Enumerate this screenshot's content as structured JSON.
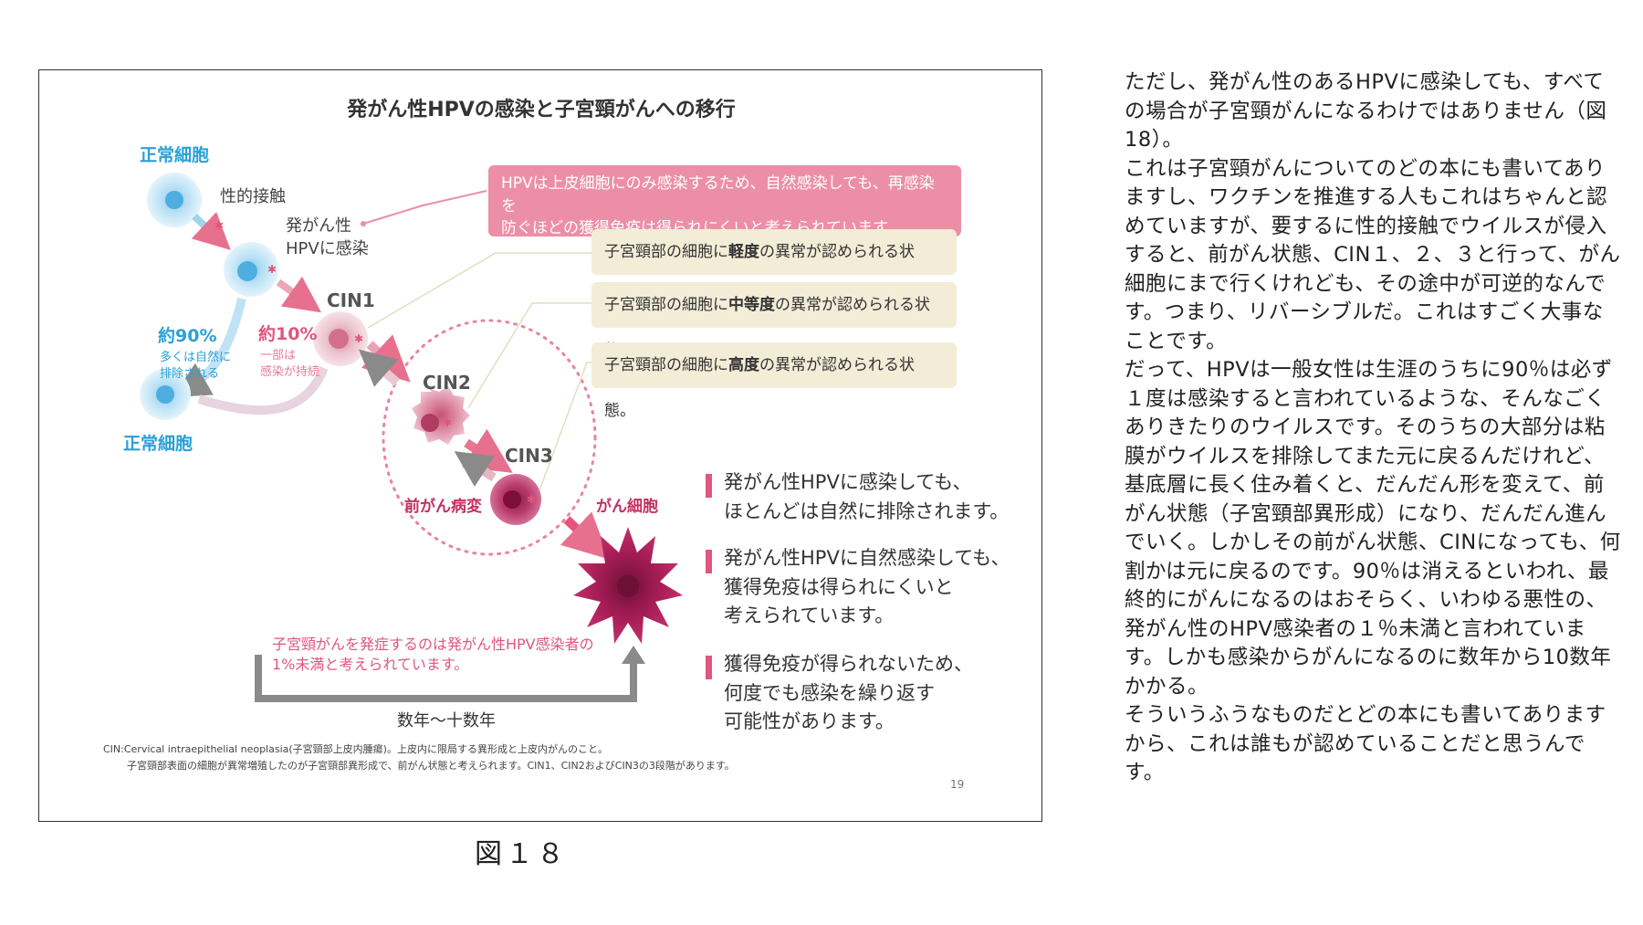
{
  "figure": {
    "title": "発がん性HPVの感染と子宮頸がんへの移行",
    "labels": {
      "normal_cell_top": "正常細胞",
      "sexual_contact": "性的接触",
      "infected_line1": "発がん性",
      "infected_line2": "HPVに感染",
      "cin1": "CIN1",
      "cin2": "CIN2",
      "cin3": "CIN3",
      "pct90": "約90%",
      "pct90_note_1": "多くは自然に",
      "pct90_note_2": "排除される",
      "pct10": "約10%",
      "pct10_note_1": "一部は",
      "pct10_note_2": "感染が持続",
      "normal_cell_bottom": "正常細胞",
      "precancer": "前がん病変",
      "cancer_cell": "がん細胞"
    },
    "pink_box_1": "HPVは上皮細胞にのみ感染するため、自然感染しても、再感染を",
    "pink_box_2": "防ぐほどの獲得免疫は得られにくいと考えられています。",
    "beige_boxes": [
      {
        "before": "子宮頸部の細胞に",
        "bold": "軽度",
        "after": "の異常が認められる状態。"
      },
      {
        "before": "子宮頸部の細胞に",
        "bold": "中等度",
        "after": "の異常が認められる状態。"
      },
      {
        "before": "子宮頸部の細胞に",
        "bold": "高度",
        "after": "の異常が認められる状態。"
      }
    ],
    "bullets": [
      {
        "l1": "発がん性HPVに感染しても、",
        "l2": "ほとんどは自然に排除されます。",
        "l3": ""
      },
      {
        "l1": "発がん性HPVに自然感染しても、",
        "l2": "獲得免疫は得られにくいと",
        "l3": "考えられています。"
      },
      {
        "l1": "獲得免疫が得られないため、",
        "l2": "何度でも感染を繰り返す",
        "l3": "可能性があります。"
      }
    ],
    "bottom_note_1": "子宮頸がんを発症するのは発がん性HPV感染者の",
    "bottom_note_2": "1%未満と考えられています。",
    "years": "数年〜十数年",
    "footnote_1": "CIN:Cervical intraepithelial neoplasia(子宮頸部上皮内腫瘍)。上皮内に限局する異形成と上皮内がんのこと。",
    "footnote_2": "子宮頸部表面の細胞が異常増殖したのが子宮頸部異形成で、前がん状態と考えられます。CIN1、CIN2およびCIN3の3段階があります。",
    "page_number": "19"
  },
  "caption": "図１８",
  "article": [
    "ただし、発がん性のあるHPVに感染しても、すべての場合が子宮頸がんになるわけではありません（図18）。",
    "これは子宮頸がんについてのどの本にも書いてありますし、ワクチンを推進する人もこれはちゃんと認めていますが、要するに性的接触でウイルスが侵入すると、前がん状態、CIN１、２、３と行って、がん細胞にまで行くけれども、その途中が可逆的なんです。つまり、リバーシブルだ。これはすごく大事なことです。",
    "だって、HPVは一般女性は生涯のうちに90％は必ず１度は感染すると言われているような、そんなごくありきたりのウイルスです。そのうちの大部分は粘膜がウイルスを排除してまた元に戻るんだけれど、基底層に長く住み着くと、だんだん形を変えて、前がん状態（子宮頸部異形成）になり、だんだん進んでいく。しかしその前がん状態、CINになっても、何割かは元に戻るのです。90％は消えるといわれ、最終的にがんになるのはおそらく、いわゆる悪性の、発がん性のHPV感染者の１％未満と言われています。しかも感染からがんになるのに数年から10数年かかる。",
    "そういうふうなものだとどの本にも書いてありますから、これは誰もが認めていることだと思うんです。"
  ],
  "colors": {
    "blue": "#2aa0d8",
    "pink": "#e0567e",
    "pink_box": "#ec8fa6",
    "beige_box": "#f3ecd7",
    "cancer": "#b2185d"
  }
}
